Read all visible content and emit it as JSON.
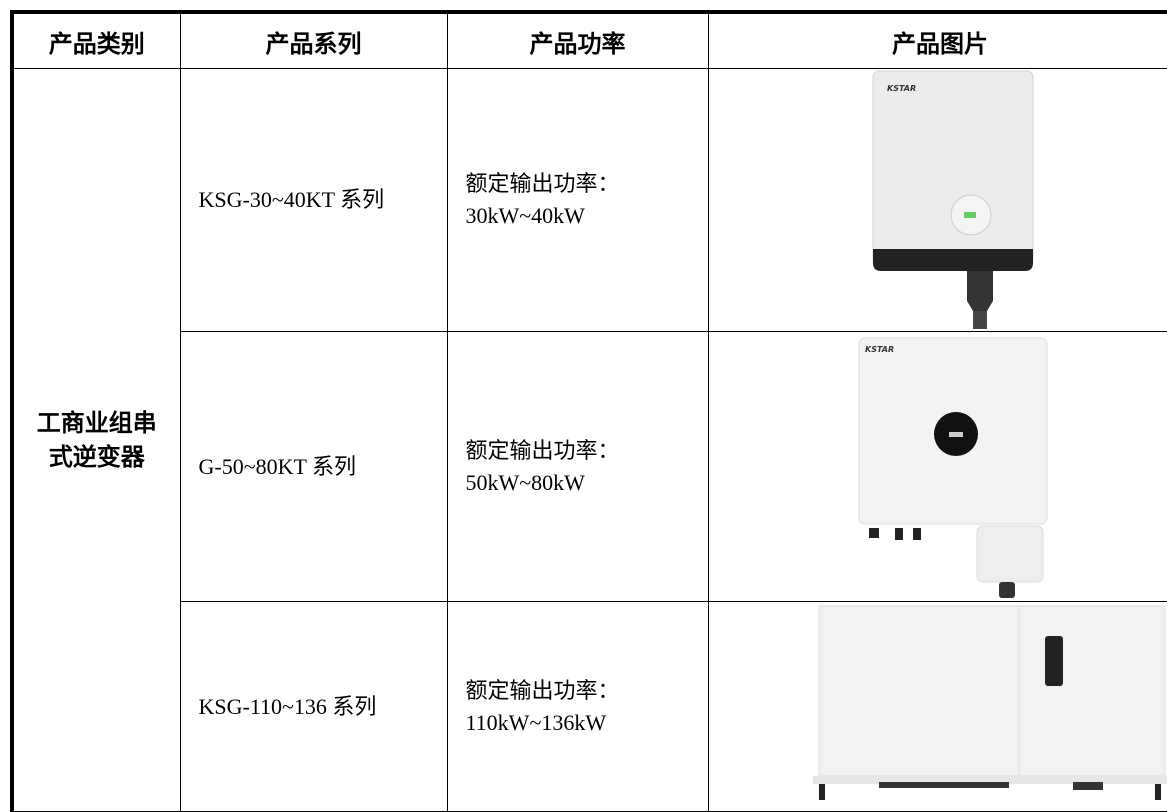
{
  "table": {
    "header": [
      "产品类别",
      "产品系列",
      "产品功率",
      "产品图片"
    ],
    "category": "工商业组串式逆变器",
    "rows": [
      {
        "series": "KSG-30~40KT 系列",
        "power_label": "额定输出功率：",
        "power": "30kW~40kW",
        "brand": "KSTAR"
      },
      {
        "series": "G-50~80KT 系列",
        "power_label": "额定输出功率：",
        "power": "50kW~80kW",
        "brand": "KSTAR"
      },
      {
        "series": "KSG-110~136 系列",
        "power_label": "额定输出功率：",
        "power": "110kW~136kW"
      }
    ]
  }
}
